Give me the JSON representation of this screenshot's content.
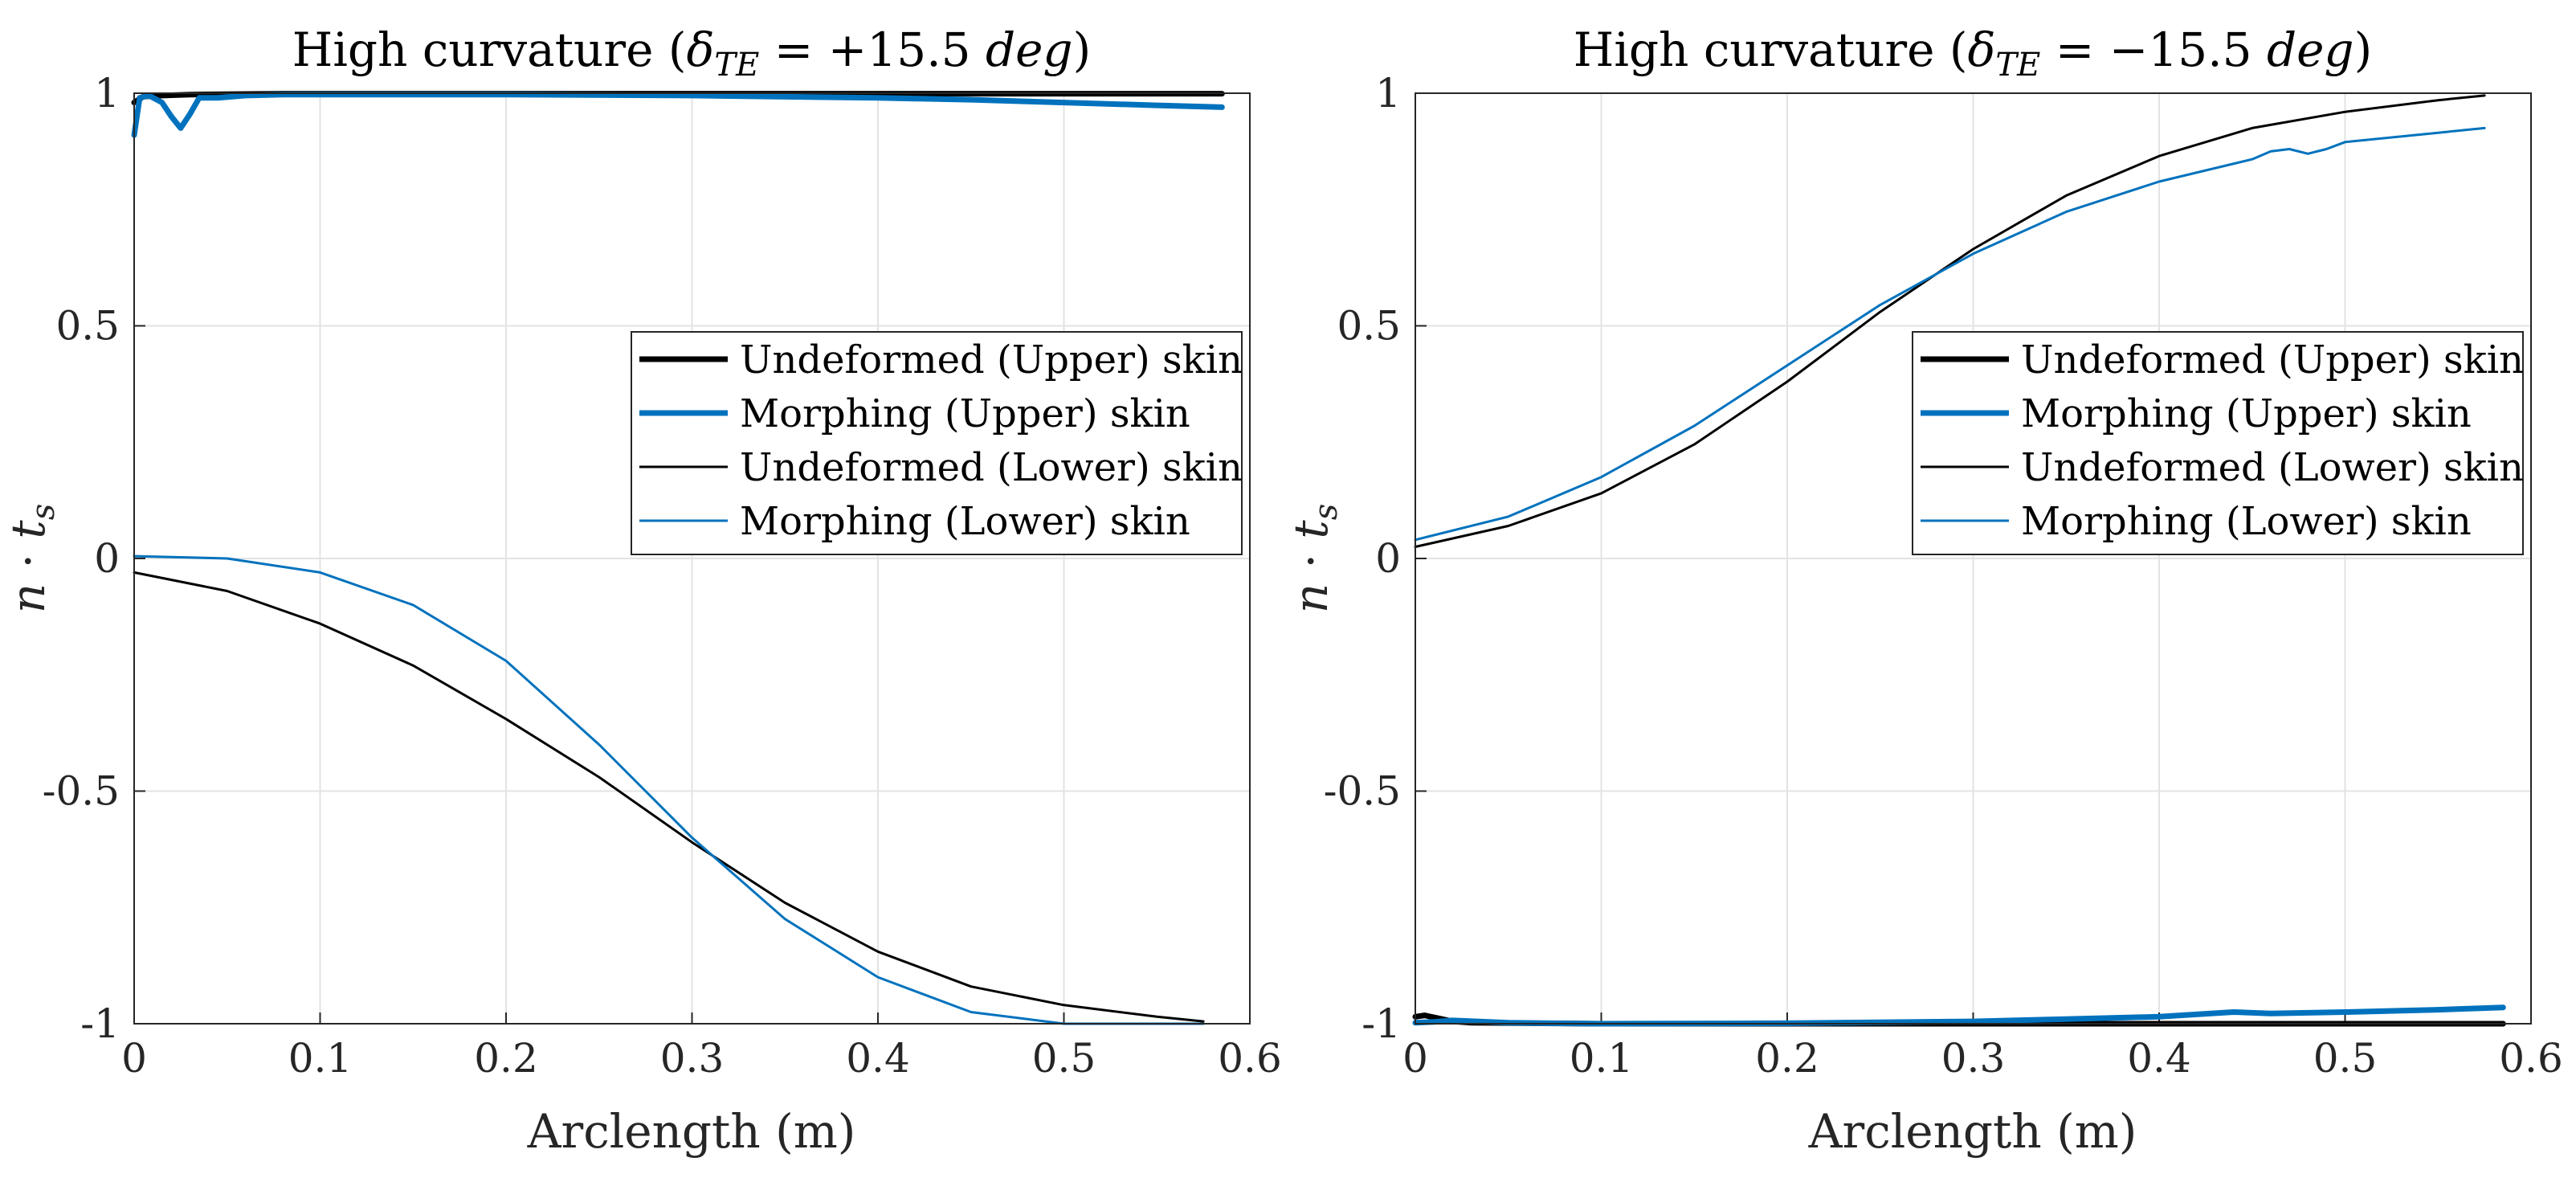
{
  "colors": {
    "undeformed": "#000000",
    "morphing": "#0072BD",
    "grid": "#e3e3e3",
    "axis": "#262626"
  },
  "legend_entries": [
    {
      "label": "Undeformed (Upper) skin",
      "color": "#000000",
      "thick": true
    },
    {
      "label": "Morphing (Upper) skin",
      "color": "#0072BD",
      "thick": true
    },
    {
      "label": "Undeformed (Lower) skin",
      "color": "#000000",
      "thick": false
    },
    {
      "label": "Morphing (Lower) skin",
      "color": "#0072BD",
      "thick": false
    }
  ],
  "chart_data": [
    {
      "type": "line",
      "title": {
        "prefix": "High curvature (",
        "delta": "δ",
        "sub": "TE",
        "eq": " = ",
        "value": "+15.5",
        "unit": "deg",
        "suffix": ")"
      },
      "xlabel": "Arclength (m)",
      "ylabel": {
        "n": "n",
        "dot": " · ",
        "t": "t",
        "sub": "s"
      },
      "xlim": [
        0,
        0.6
      ],
      "ylim": [
        -1,
        1
      ],
      "xticks": [
        0,
        0.1,
        0.2,
        0.3,
        0.4,
        0.5,
        0.6
      ],
      "xtick_labels": [
        "0",
        "0.1",
        "0.2",
        "0.3",
        "0.4",
        "0.5",
        "0.6"
      ],
      "yticks": [
        -1,
        -0.5,
        0,
        0.5,
        1
      ],
      "ytick_labels": [
        "-1",
        "-0.5",
        "0",
        "0.5",
        "1"
      ],
      "grid": true,
      "legend_location": "center-right",
      "series": [
        {
          "name": "Undeformed (Upper) skin",
          "style": "thick-black",
          "x": [
            0,
            0.005,
            0.015,
            0.03,
            0.05,
            0.08,
            0.2,
            0.4,
            0.585
          ],
          "y": [
            0.98,
            0.993,
            0.995,
            0.997,
            0.998,
            0.999,
            0.999,
            0.999,
            0.999
          ]
        },
        {
          "name": "Morphing (Upper) skin",
          "style": "thick-blue",
          "x": [
            0,
            0.003,
            0.008,
            0.015,
            0.02,
            0.025,
            0.03,
            0.035,
            0.045,
            0.06,
            0.08,
            0.2,
            0.3,
            0.4,
            0.45,
            0.5,
            0.55,
            0.585
          ],
          "y": [
            0.91,
            0.99,
            0.995,
            0.98,
            0.95,
            0.925,
            0.955,
            0.99,
            0.99,
            0.995,
            0.997,
            0.997,
            0.995,
            0.99,
            0.986,
            0.98,
            0.974,
            0.97
          ]
        },
        {
          "name": "Undeformed (Lower) skin",
          "style": "thin-black",
          "x": [
            0,
            0.05,
            0.1,
            0.15,
            0.2,
            0.25,
            0.3,
            0.35,
            0.4,
            0.45,
            0.5,
            0.55,
            0.575
          ],
          "y": [
            -0.03,
            -0.07,
            -0.14,
            -0.23,
            -0.345,
            -0.47,
            -0.61,
            -0.74,
            -0.845,
            -0.92,
            -0.96,
            -0.985,
            -0.995
          ]
        },
        {
          "name": "Morphing (Lower) skin",
          "style": "thin-blue",
          "x": [
            0,
            0.05,
            0.1,
            0.15,
            0.2,
            0.25,
            0.3,
            0.35,
            0.4,
            0.45,
            0.5,
            0.55,
            0.575
          ],
          "y": [
            0.005,
            0.0,
            -0.03,
            -0.1,
            -0.22,
            -0.4,
            -0.6,
            -0.775,
            -0.9,
            -0.975,
            -1.0,
            -1.0,
            -1.0
          ]
        }
      ]
    },
    {
      "type": "line",
      "title": {
        "prefix": "High curvature (",
        "delta": "δ",
        "sub": "TE",
        "eq": " = ",
        "value": "−15.5",
        "unit": "deg",
        "suffix": ")"
      },
      "xlabel": "Arclength (m)",
      "ylabel": {
        "n": "n",
        "dot": " · ",
        "t": "t",
        "sub": "s"
      },
      "xlim": [
        0,
        0.6
      ],
      "ylim": [
        -1,
        1
      ],
      "xticks": [
        0,
        0.1,
        0.2,
        0.3,
        0.4,
        0.5,
        0.6
      ],
      "xtick_labels": [
        "0",
        "0.1",
        "0.2",
        "0.3",
        "0.4",
        "0.5",
        "0.6"
      ],
      "yticks": [
        -1,
        -0.5,
        0,
        0.5,
        1
      ],
      "ytick_labels": [
        "-1",
        "-0.5",
        "0",
        "0.5",
        "1"
      ],
      "grid": true,
      "legend_location": "center-right",
      "series": [
        {
          "name": "Undeformed (Upper) skin",
          "style": "thick-black",
          "x": [
            0,
            0.005,
            0.012,
            0.02,
            0.03,
            0.1,
            0.3,
            0.5,
            0.585
          ],
          "y": [
            -0.985,
            -0.982,
            -0.988,
            -0.995,
            -0.998,
            -1.0,
            -1.0,
            -1.0,
            -1.0
          ]
        },
        {
          "name": "Morphing (Upper) skin",
          "style": "thick-blue",
          "x": [
            0,
            0.01,
            0.02,
            0.05,
            0.1,
            0.2,
            0.3,
            0.35,
            0.4,
            0.42,
            0.44,
            0.46,
            0.5,
            0.55,
            0.585
          ],
          "y": [
            -0.998,
            -0.996,
            -0.993,
            -0.998,
            -1.0,
            -0.999,
            -0.995,
            -0.99,
            -0.985,
            -0.98,
            -0.975,
            -0.978,
            -0.975,
            -0.97,
            -0.965
          ]
        },
        {
          "name": "Undeformed (Lower) skin",
          "style": "thin-black",
          "x": [
            0,
            0.05,
            0.1,
            0.15,
            0.2,
            0.25,
            0.3,
            0.35,
            0.4,
            0.45,
            0.5,
            0.55,
            0.575
          ],
          "y": [
            0.025,
            0.07,
            0.14,
            0.245,
            0.38,
            0.53,
            0.665,
            0.78,
            0.865,
            0.925,
            0.96,
            0.985,
            0.995
          ]
        },
        {
          "name": "Morphing (Lower) skin",
          "style": "thin-blue",
          "x": [
            0,
            0.05,
            0.1,
            0.15,
            0.2,
            0.25,
            0.3,
            0.35,
            0.4,
            0.45,
            0.46,
            0.47,
            0.48,
            0.49,
            0.5,
            0.55,
            0.575
          ],
          "y": [
            0.04,
            0.09,
            0.175,
            0.285,
            0.415,
            0.545,
            0.655,
            0.745,
            0.81,
            0.858,
            0.875,
            0.88,
            0.87,
            0.88,
            0.895,
            0.915,
            0.925
          ]
        }
      ]
    }
  ]
}
